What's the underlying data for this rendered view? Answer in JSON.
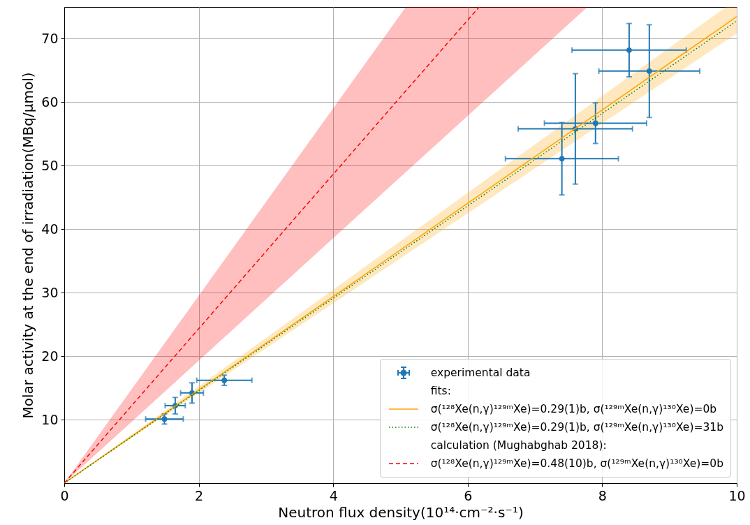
{
  "chart_data": {
    "type": "scatter",
    "xlabel": "Neutron flux density(10¹⁴·cm⁻²·s⁻¹)",
    "ylabel": "Molar activity at the end of irradiation(MBq/μmol)",
    "xlim": [
      0,
      10
    ],
    "xticks": [
      0,
      2,
      4,
      6,
      8,
      10
    ],
    "ylim": [
      0,
      75
    ],
    "yticks": [
      10,
      20,
      30,
      40,
      50,
      60,
      70
    ],
    "grid": true,
    "legend": "bottom right",
    "annotations": [
      "fits:",
      "calculation (Mughabghab 2018):"
    ],
    "series": [
      {
        "name": "experimental data",
        "color": "#1f77b4",
        "marker": "circle",
        "x": [
          1.49,
          1.65,
          1.9,
          2.38,
          7.4,
          7.6,
          7.9,
          8.4,
          8.7
        ],
        "values": [
          10.1,
          12.2,
          14.2,
          16.2,
          51.1,
          55.8,
          56.7,
          68.2,
          64.9
        ],
        "errors": [
          0.8,
          1.3,
          1.6,
          0.8,
          5.7,
          8.7,
          3.2,
          4.2,
          7.3
        ],
        "xerrors": [
          0.28,
          0.15,
          0.17,
          0.41,
          0.84,
          0.85,
          0.76,
          0.85,
          0.75
        ]
      },
      {
        "name": "σ(¹²⁸Xe(n,γ)¹²⁹ᵐXe)=0.29(1)b, σ(¹²⁹ᵐXe(n,γ)¹³⁰Xe)=0b",
        "type": "line",
        "color": "#ffa500",
        "line_style": "solid",
        "x": [
          0,
          9.84,
          10
        ],
        "values": [
          0,
          72.3,
          73.5
        ],
        "lower": [
          0,
          69.7,
          70.8
        ],
        "upper": [
          0,
          75,
          75
        ]
      },
      {
        "name": "σ(¹²⁸Xe(n,γ)¹²⁹ᵐXe)=0.29(1)b, σ(¹²⁹ᵐXe(n,γ)¹³⁰Xe)=31b",
        "type": "line",
        "color": "#008000",
        "line_style": "dotted",
        "x": [
          0,
          10
        ],
        "values": [
          0,
          72.8
        ]
      },
      {
        "name": "σ(¹²⁸Xe(n,γ)¹²⁹ᵐXe)=0.48(10)b, σ(¹²⁹ᵐXe(n,γ)¹³⁰Xe)=0b",
        "type": "line",
        "color": "#ff0000",
        "line_style": "dashed",
        "x": [
          0,
          5.08,
          6.17,
          7.78
        ],
        "values": [
          0,
          61.8,
          75,
          null
        ],
        "lower": [
          0,
          49.0,
          59.5,
          75
        ],
        "upper": [
          0,
          75,
          75,
          75
        ]
      }
    ]
  }
}
